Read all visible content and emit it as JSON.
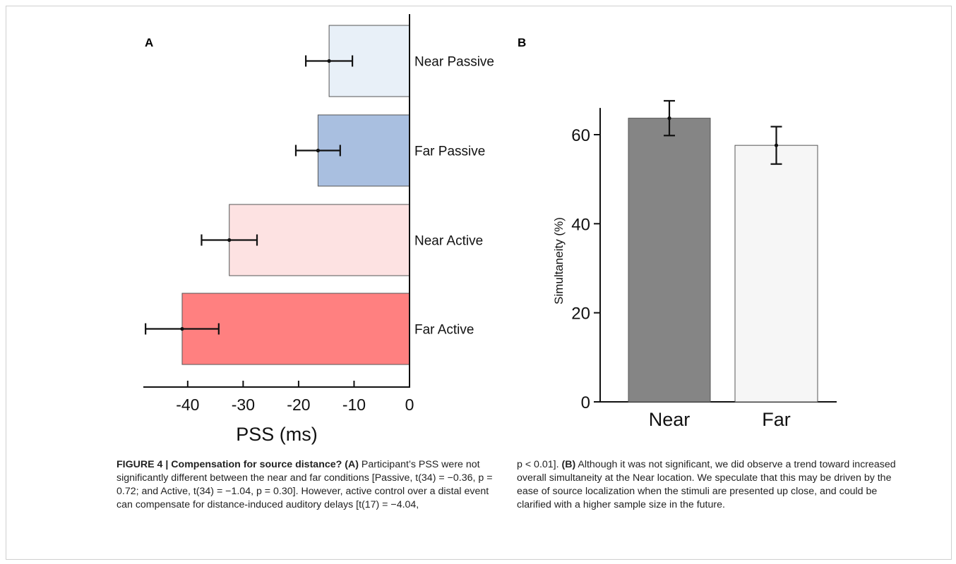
{
  "chart_data": [
    {
      "type": "bar",
      "orientation": "horizontal",
      "panel_label": "A",
      "xlabel": "PSS (ms)",
      "xlim": [
        -48,
        0
      ],
      "xticks": [
        "-40",
        "-30",
        "-20",
        "-10",
        "0"
      ],
      "xtick_values": [
        -40,
        -30,
        -20,
        -10,
        0
      ],
      "categories": [
        "Near Passive",
        "Far Passive",
        "Near Active",
        "Far Active"
      ],
      "values": [
        -14.5,
        -16.5,
        -32.5,
        -41
      ],
      "errors": [
        4.2,
        4.0,
        5.0,
        6.6
      ],
      "colors": [
        "#e8f0f8",
        "#a9bfe0",
        "#fde2e2",
        "#ff8080"
      ]
    },
    {
      "type": "bar",
      "panel_label": "B",
      "ylabel": "Simultaneity (%)",
      "ylim": [
        0,
        66
      ],
      "yticks": [
        "0",
        "20",
        "40",
        "60"
      ],
      "ytick_values": [
        0,
        20,
        40,
        60
      ],
      "categories": [
        "Near",
        "Far"
      ],
      "values": [
        63.7,
        57.6
      ],
      "errors": [
        3.9,
        4.2
      ],
      "colors": [
        "#858585",
        "#f6f6f6"
      ]
    }
  ],
  "caption": {
    "left": {
      "bold": "FIGURE 4 | Compensation for source distance? (A)",
      "text": " Participant’s PSS were not significantly different between the near and far conditions [Passive, t(34) = −0.36, p = 0.72; and Active, t(34) = −1.04, p = 0.30]. However, active control over a distal event can compensate for distance-induced auditory delays [t(17) = −4.04,"
    },
    "right": {
      "text1": "p < 0.01]. ",
      "bold": "(B)",
      "text2": " Although it was not significant, we did observe a trend toward increased overall simultaneity at the Near location. We speculate that this may be driven by the ease of source localization when the stimuli are presented up close, and could be clarified with a higher sample size in the future."
    }
  }
}
